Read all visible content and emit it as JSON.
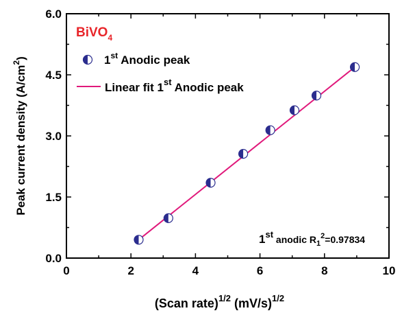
{
  "chart_data": {
    "type": "scatter",
    "annotation_title": {
      "base": "BiVO",
      "sub": "4",
      "color": "#e8252a"
    },
    "xlabel": {
      "base": "(Scan rate)",
      "sup": "1/2",
      "units": " (mV/s)",
      "units_sup": "1/2"
    },
    "ylabel": {
      "base": "Peak current density (A/cm",
      "sup": "2",
      "end": ")"
    },
    "xlim": [
      0,
      10
    ],
    "ylim": [
      0,
      6.0
    ],
    "x_ticks": [
      0,
      2,
      4,
      6,
      8,
      10
    ],
    "x_tick_labels": [
      "0",
      "2",
      "4",
      "6",
      "8",
      "10"
    ],
    "y_ticks": [
      0,
      1.5,
      3.0,
      4.5,
      6.0
    ],
    "y_tick_labels": [
      "0.0",
      "1.5",
      "3.0",
      "4.5",
      "6.0"
    ],
    "grid": false,
    "legend_position": "top-left",
    "series": [
      {
        "name_parts": {
          "pre": "1",
          "sup": "st",
          "post": " Anodic peak"
        },
        "marker": "half-filled-circle",
        "color": "#2b2d8e",
        "points": [
          {
            "x": 2.24,
            "y": 0.45
          },
          {
            "x": 3.16,
            "y": 0.98
          },
          {
            "x": 4.47,
            "y": 1.85
          },
          {
            "x": 5.48,
            "y": 2.56
          },
          {
            "x": 6.32,
            "y": 3.14
          },
          {
            "x": 7.07,
            "y": 3.63
          },
          {
            "x": 7.75,
            "y": 3.99
          },
          {
            "x": 8.94,
            "y": 4.69
          }
        ]
      },
      {
        "name_parts": {
          "pre": "Linear fit 1",
          "sup": "st",
          "post": " Anodic peak"
        },
        "type": "line",
        "color": "#e0197b",
        "points": [
          {
            "x": 2.24,
            "y": 0.45
          },
          {
            "x": 8.94,
            "y": 4.69
          }
        ]
      }
    ],
    "fit_annotation": {
      "pre": "1",
      "sup": "st",
      "mid": " anodic R",
      "sub": "1",
      "sup2": "2",
      "post": "=0.97834"
    }
  }
}
